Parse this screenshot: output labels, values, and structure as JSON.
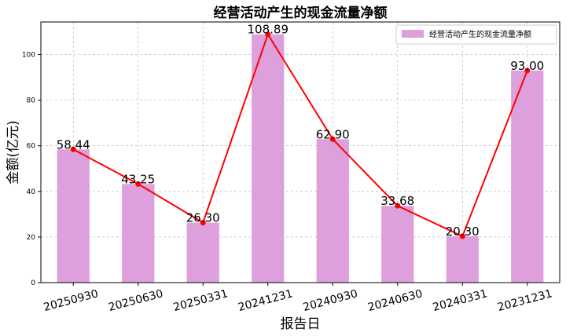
{
  "chart_data": {
    "type": "bar",
    "title": "经营活动产生的现金流量净额",
    "xlabel": "报告日",
    "ylabel": "金额(亿元)",
    "categories": [
      "20250930",
      "20250630",
      "20250331",
      "20241231",
      "20240930",
      "20240630",
      "20240331",
      "20231231"
    ],
    "values": [
      58.44,
      43.25,
      26.3,
      108.89,
      62.9,
      33.68,
      20.3,
      93.0
    ],
    "data_labels": [
      "58.44",
      "43.25",
      "26.30",
      "108.89",
      "62.90",
      "33.68",
      "20.30",
      "93.00"
    ],
    "series": [
      {
        "name": "经营活动产生的现金流量净额",
        "type": "bar",
        "color": "#dda0dd"
      },
      {
        "type": "line",
        "color": "#ff0000"
      }
    ],
    "ylim": [
      0,
      114.3
    ],
    "yticks": [
      0,
      20,
      40,
      60,
      80,
      100
    ],
    "grid": true,
    "legend_position": "top-right"
  }
}
